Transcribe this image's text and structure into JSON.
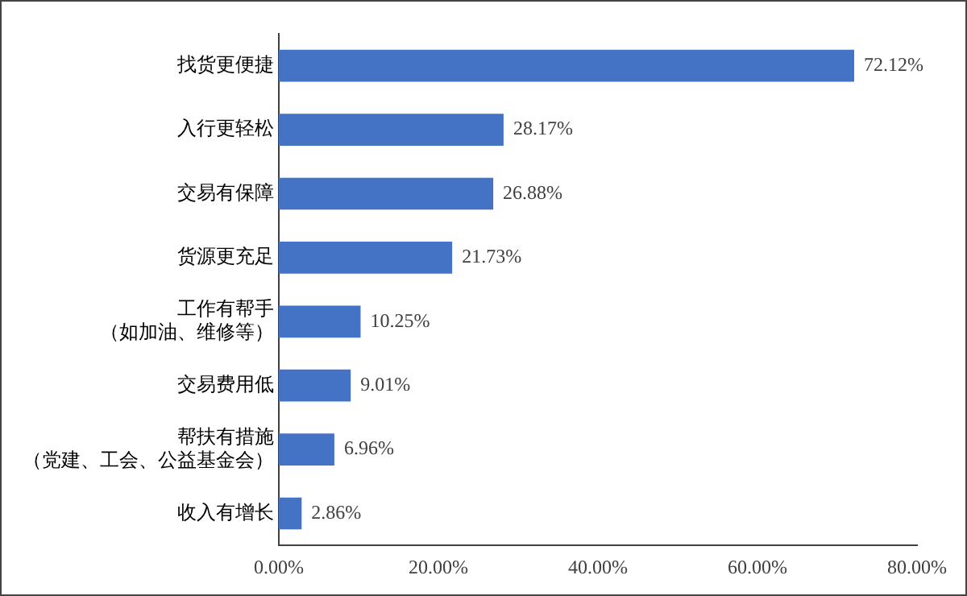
{
  "chart_data": {
    "type": "bar",
    "orientation": "horizontal",
    "categories": [
      "找货更便捷",
      "入行更轻松",
      "交易有保障",
      "货源更充足",
      "工作有帮手（如加油、维修等）",
      "交易费用低",
      "帮扶有措施（党建、工会、公益基金会）",
      "收入有增长"
    ],
    "values": [
      72.12,
      28.17,
      26.88,
      21.73,
      10.25,
      9.01,
      6.96,
      2.86
    ],
    "value_labels": [
      "72.12%",
      "28.17%",
      "26.88%",
      "21.73%",
      "10.25%",
      "9.01%",
      "6.96%",
      "2.86%"
    ],
    "color": "#4472c4",
    "xlim": [
      0,
      80
    ],
    "xticks": [
      {
        "value": 0,
        "label": "0.00%"
      },
      {
        "value": 20,
        "label": "20.00%"
      },
      {
        "value": 40,
        "label": "40.00%"
      },
      {
        "value": 60,
        "label": "60.00%"
      },
      {
        "value": 80,
        "label": "80.00%"
      }
    ],
    "grid": false,
    "legend": false
  }
}
